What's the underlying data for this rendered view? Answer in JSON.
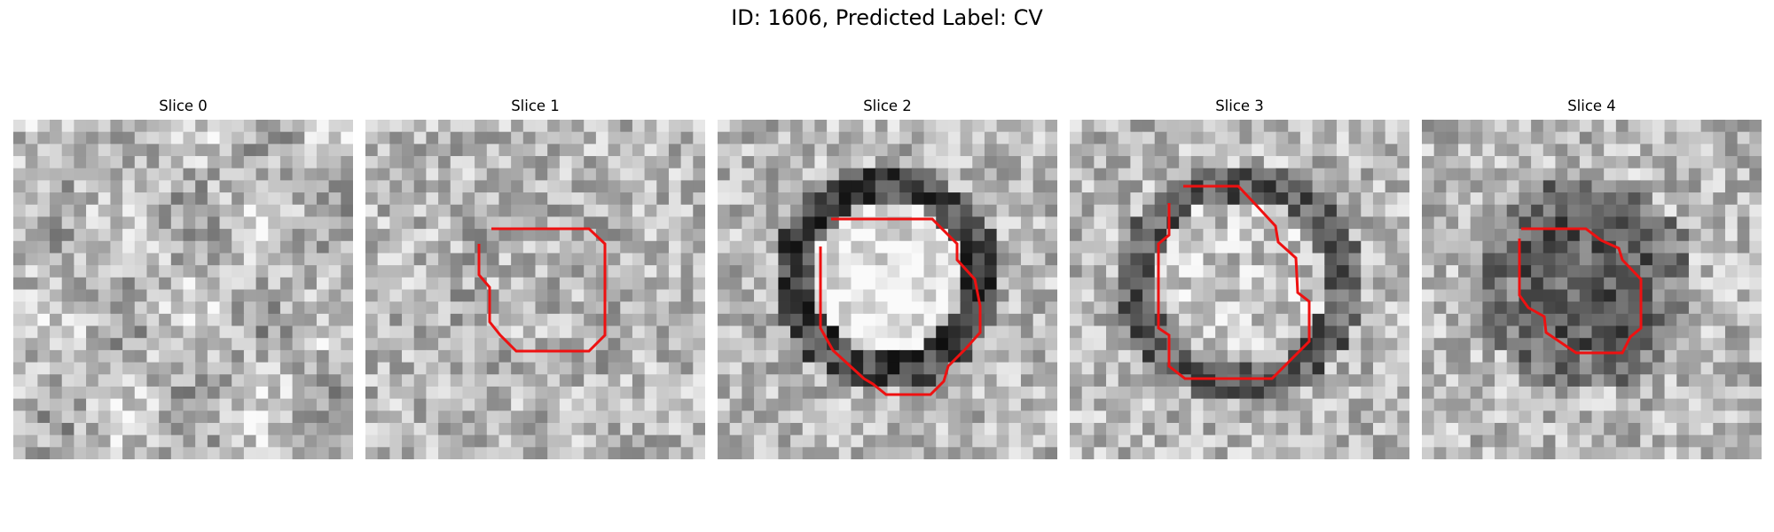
{
  "figure": {
    "title": "ID: 1606, Predicted Label: CV"
  },
  "panels": [
    {
      "title": "Slice 0",
      "contour": false
    },
    {
      "title": "Slice 1",
      "contour": true
    },
    {
      "title": "Slice 2",
      "contour": true
    },
    {
      "title": "Slice 3",
      "contour": true
    },
    {
      "title": "Slice 4",
      "contour": true
    }
  ],
  "colors": {
    "contour": "#ee1111"
  }
}
